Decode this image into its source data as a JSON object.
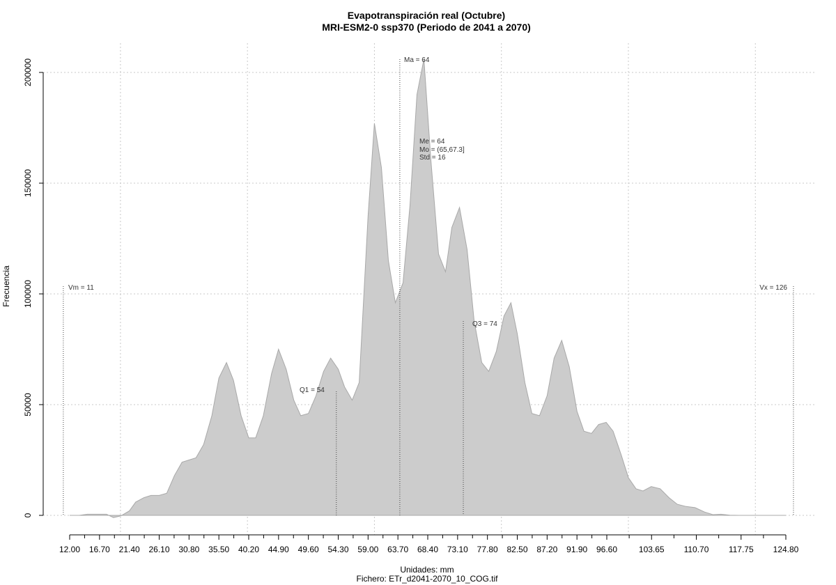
{
  "chart_data": {
    "type": "area",
    "title": "Evapotranspiración real (Octubre)",
    "subtitle": "MRI-ESM2-0 ssp370 (Periodo de 2041 a 2070)",
    "xlabel": "Unidades: mm",
    "caption": "Fichero: ETr_d2041-2070_10_COG.tif",
    "ylabel": "Frecuencia",
    "xlim": [
      10.8,
      126.0
    ],
    "ylim": [
      0,
      200000
    ],
    "x_ticks": [
      "12.00",
      "16.70",
      "21.40",
      "26.10",
      "30.80",
      "35.50",
      "40.20",
      "44.90",
      "49.60",
      "54.30",
      "59.00",
      "63.70",
      "68.40",
      "73.10",
      "77.80",
      "82.50",
      "87.20",
      "91.90",
      "96.60",
      "103.65",
      "110.70",
      "117.75",
      "124.80"
    ],
    "y_ticks": [
      "0",
      "50000",
      "100000",
      "150000",
      "200000"
    ],
    "grid": true,
    "fill_color": "#cccccc",
    "stroke_color": "#a8a8a8",
    "annotations": {
      "vm": "Vm = 11",
      "vx": "Vx = 126",
      "ma": "Ma = 64",
      "q1": "Q1 = 54",
      "q3": "Q3 = 74",
      "me": "Me = 64",
      "mo": "Mo = (65,67.3]",
      "std": "Std = 16"
    },
    "marker_lines": {
      "vm": 11,
      "vx": 126,
      "ma": 64,
      "q1": 54,
      "q3": 74
    },
    "x": [
      12.0,
      13.5,
      14.8,
      16.0,
      16.7,
      17.8,
      18.9,
      20.1,
      21.4,
      22.4,
      23.7,
      24.8,
      26.1,
      27.3,
      28.5,
      29.7,
      30.8,
      31.9,
      33.1,
      34.4,
      35.5,
      36.7,
      37.8,
      39.0,
      40.2,
      41.3,
      42.5,
      43.8,
      44.9,
      46.1,
      47.3,
      48.4,
      49.6,
      50.8,
      52.0,
      53.1,
      54.3,
      55.3,
      56.5,
      57.6,
      59.0,
      60.0,
      61.1,
      62.2,
      63.3,
      64.5,
      65.6,
      66.7,
      67.8,
      68.9,
      70.1,
      71.2,
      72.2,
      73.4,
      74.6,
      75.7,
      76.9,
      78.0,
      79.2,
      80.4,
      81.5,
      82.5,
      83.7,
      84.8,
      86.0,
      87.2,
      88.3,
      89.5,
      90.7,
      91.9,
      93.0,
      94.2,
      95.3,
      96.5,
      97.6,
      98.9,
      100.0,
      101.2,
      102.3,
      103.6,
      105.0,
      106.4,
      107.7,
      109.1,
      110.5,
      112.0,
      113.3,
      114.6,
      116.0,
      117.5,
      119.0,
      120.5,
      122.0,
      123.4,
      124.8
    ],
    "y": [
      0,
      0,
      500,
      500,
      500,
      500,
      -1000,
      -200,
      2000,
      6000,
      8000,
      9000,
      9000,
      10000,
      18000,
      24000,
      25000,
      26000,
      32000,
      45000,
      62000,
      69000,
      61000,
      45000,
      35000,
      35000,
      45000,
      64000,
      75000,
      66000,
      52000,
      45000,
      46000,
      54000,
      65000,
      71000,
      66000,
      58000,
      52000,
      60000,
      135000,
      177000,
      157000,
      115000,
      96000,
      105000,
      140000,
      190000,
      206000,
      160000,
      118000,
      110000,
      130000,
      139000,
      120000,
      88000,
      69000,
      65000,
      74000,
      90000,
      96000,
      82000,
      60000,
      46000,
      45000,
      54000,
      71000,
      79000,
      67000,
      47000,
      38000,
      37000,
      41000,
      42000,
      38000,
      27000,
      17000,
      12000,
      11000,
      13000,
      12000,
      8000,
      5000,
      4000,
      3500,
      1500,
      300,
      500,
      100,
      0,
      0,
      0,
      0,
      0,
      0
    ]
  }
}
